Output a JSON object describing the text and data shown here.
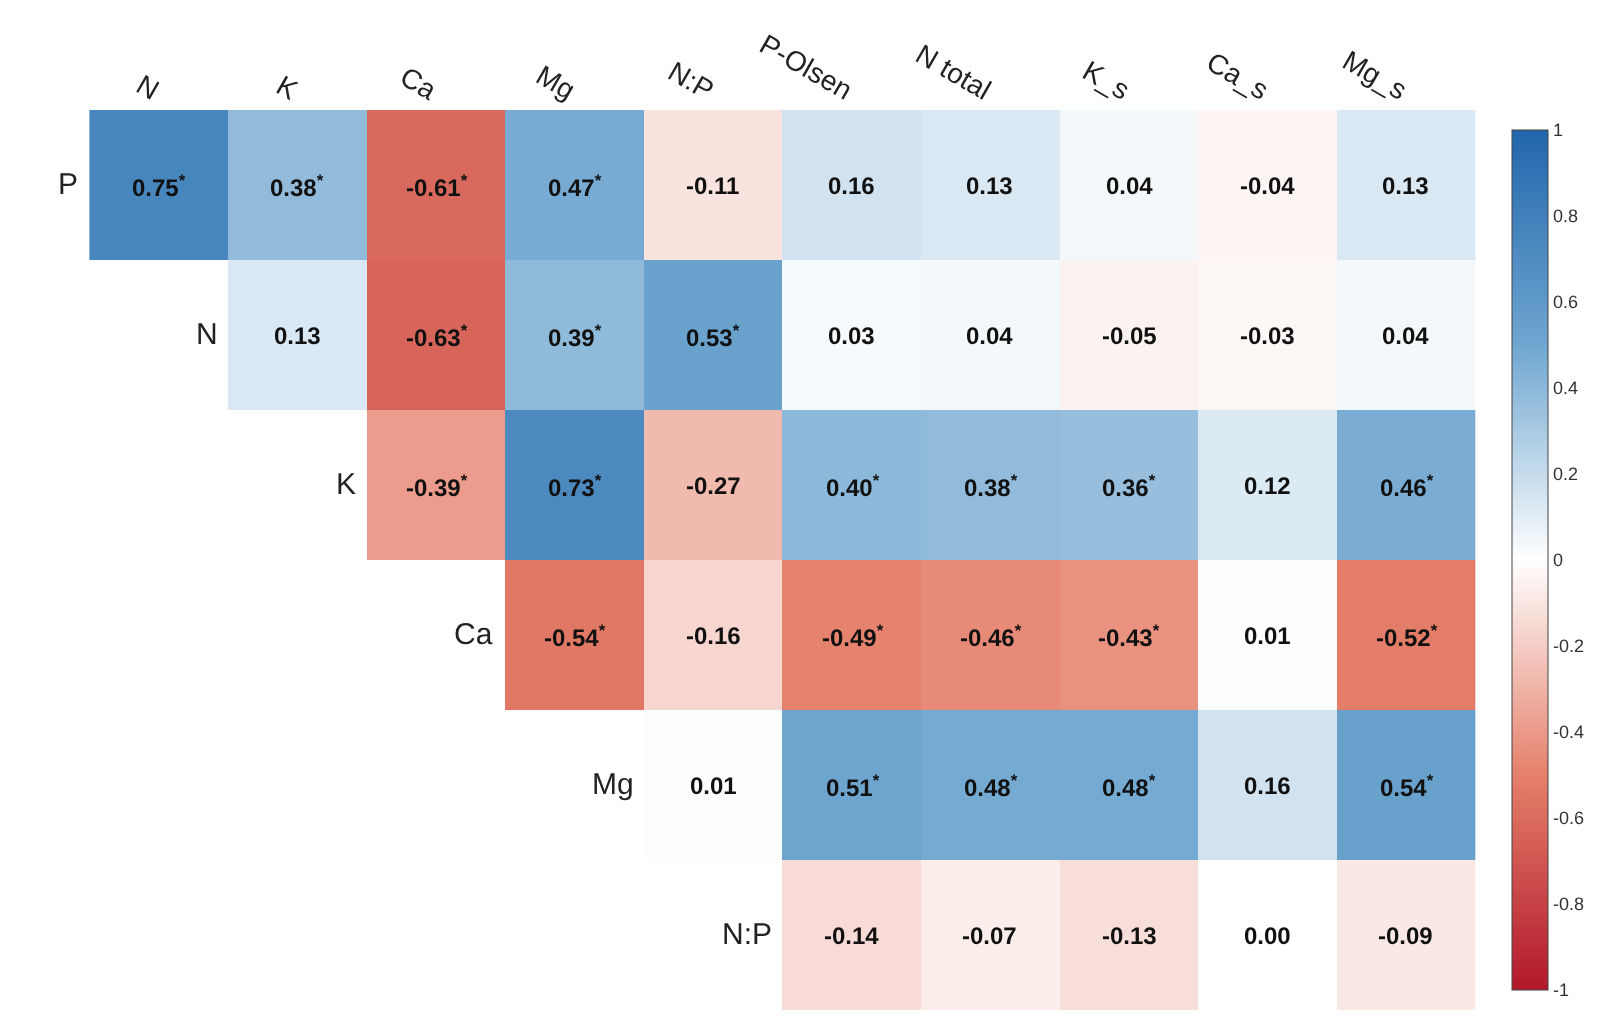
{
  "chart_data": {
    "type": "heatmap",
    "categories": [
      "N",
      "K",
      "Ca",
      "Mg",
      "N:P",
      "P-Olsen",
      "N total",
      "K_s",
      "Ca_s",
      "Mg_s"
    ],
    "y_categories": [
      "P",
      "N",
      "K",
      "Ca",
      "Mg",
      "N:P"
    ],
    "cells": [
      [
        0.75,
        0.38,
        -0.61,
        0.47,
        -0.11,
        0.16,
        0.13,
        0.04,
        -0.04,
        0.13
      ],
      [
        null,
        0.13,
        -0.63,
        0.39,
        0.53,
        0.03,
        0.04,
        -0.05,
        -0.03,
        0.04
      ],
      [
        null,
        null,
        -0.39,
        0.73,
        -0.27,
        0.4,
        0.38,
        0.36,
        0.12,
        0.46
      ],
      [
        null,
        null,
        null,
        -0.54,
        -0.16,
        -0.49,
        -0.46,
        -0.43,
        0.01,
        -0.52
      ],
      [
        null,
        null,
        null,
        null,
        0.01,
        0.51,
        0.48,
        0.48,
        0.16,
        0.54
      ],
      [
        null,
        null,
        null,
        null,
        null,
        -0.14,
        -0.07,
        -0.13,
        0.0,
        -0.09
      ]
    ],
    "cell_labels": [
      [
        "0.75$^{*}$",
        "0.38$^{*}$",
        "-0.61$^{*}$",
        "0.47$^{*}$",
        "-0.11",
        "0.16",
        "0.13",
        "0.04",
        "-0.04",
        "0.13"
      ],
      [
        null,
        "0.13",
        "-0.63$^{*}$",
        "0.39$^{*}$",
        "0.53$^{*}$",
        "0.03",
        "0.04",
        "-0.05",
        "-0.03",
        "0.04"
      ],
      [
        null,
        null,
        "-0.39$^{*}$",
        "0.73$^{*}$",
        "-0.27",
        "0.40$^{*}$",
        "0.38$^{*}$",
        "0.36$^{*}$",
        "0.12",
        "0.46$^{*}$"
      ],
      [
        null,
        null,
        null,
        "-0.54$^{*}$",
        "-0.16",
        "-0.49$^{*}$",
        "-0.46$^{*}$",
        "-0.43$^{*}$",
        "0.01",
        "-0.52$^{*}$"
      ],
      [
        null,
        null,
        null,
        null,
        "0.01",
        "0.51$^{*}$",
        "0.48$^{*}$",
        "0.48$^{*}$",
        "0.16",
        "0.54$^{*}$"
      ],
      [
        null,
        null,
        null,
        null,
        null,
        "-0.14",
        "-0.07",
        "-0.13",
        "0.00",
        "-0.09"
      ]
    ],
    "clim": [
      -1,
      1
    ],
    "cticks": [
      1,
      0.8,
      0.6,
      0.4,
      0.2,
      0,
      -0.2,
      -0.4,
      -0.6,
      -0.8,
      -1
    ]
  }
}
